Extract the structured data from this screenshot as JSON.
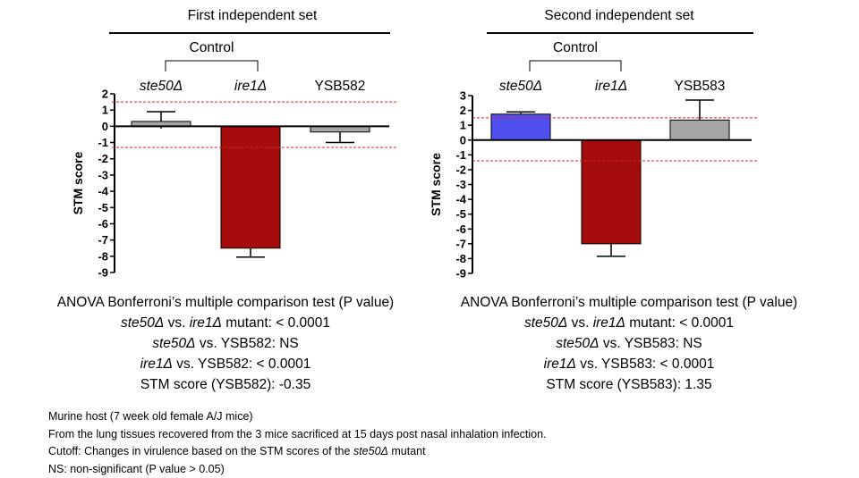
{
  "chart_data": [
    {
      "type": "bar",
      "title": "First independent set",
      "bracket_label": "Control",
      "ylabel": "STM score",
      "ylim": [
        -9,
        2
      ],
      "yticks": [
        2,
        1,
        0,
        -1,
        -2,
        -3,
        -4,
        -5,
        -6,
        -7,
        -8,
        -9
      ],
      "cutoffs": [
        1.5,
        -1.3
      ],
      "bars": [
        {
          "label": "ste50Δ",
          "italic": true,
          "value": 0.3,
          "error": 0.6,
          "color": "#a6a6a6"
        },
        {
          "label": "ire1Δ",
          "italic": true,
          "value": -7.5,
          "error": 0.55,
          "color": "#a50d0d"
        },
        {
          "label": "YSB582",
          "italic": false,
          "value": -0.35,
          "error": 0.65,
          "color": "#a6a6a6"
        }
      ]
    },
    {
      "type": "bar",
      "title": "Second independent set",
      "bracket_label": "Control",
      "ylabel": "STM score",
      "ylim": [
        -9,
        3
      ],
      "yticks": [
        3,
        2,
        1,
        0,
        -1,
        -2,
        -3,
        -4,
        -5,
        -6,
        -7,
        -8,
        -9
      ],
      "cutoffs": [
        1.5,
        -1.4
      ],
      "bars": [
        {
          "label": "ste50Δ",
          "italic": true,
          "value": 1.75,
          "error": 0.15,
          "color": "#5050f0"
        },
        {
          "label": "ire1Δ",
          "italic": true,
          "value": -7.0,
          "error": 0.85,
          "color": "#a50d0d"
        },
        {
          "label": "YSB583",
          "italic": false,
          "value": 1.35,
          "error": 1.35,
          "color": "#a6a6a6"
        }
      ]
    }
  ],
  "stats": [
    {
      "heading": "ANOVA Bonferroni’s multiple comparison test (P value)",
      "l1_a": "ste50Δ",
      "l1_b": " vs. ",
      "l1_c": "ire1Δ",
      "l1_d": " mutant: < 0.0001",
      "l2_a": "ste50Δ",
      "l2_b": " vs. YSB582: NS",
      "l3_a": "ire1Δ",
      "l3_b": " vs. YSB582: < 0.0001",
      "l4": "STM score (YSB582): -0.35"
    },
    {
      "heading": "ANOVA Bonferroni’s multiple comparison test (P value)",
      "l1_a": "ste50Δ",
      "l1_b": " vs. ",
      "l1_c": "ire1Δ",
      "l1_d": " mutant: < 0.0001",
      "l2_a": "ste50Δ",
      "l2_b": " vs. YSB583: NS",
      "l3_a": "ire1Δ",
      "l3_b": " vs. YSB583: < 0.0001",
      "l4": "STM score (YSB583): 1.35"
    }
  ],
  "notes": {
    "line1": "Murine host (7 week old female A/J mice)",
    "line2": "From  the lung tissues recovered from the 3 mice sacrificed at 15 days post nasal inhalation infection.",
    "line3_a": "Cutoff: Changes in virulence based on the STM scores of the ",
    "line3_b": "ste50Δ",
    "line3_c": " mutant",
    "line4": "NS: non-significant (P value > 0.05)"
  }
}
